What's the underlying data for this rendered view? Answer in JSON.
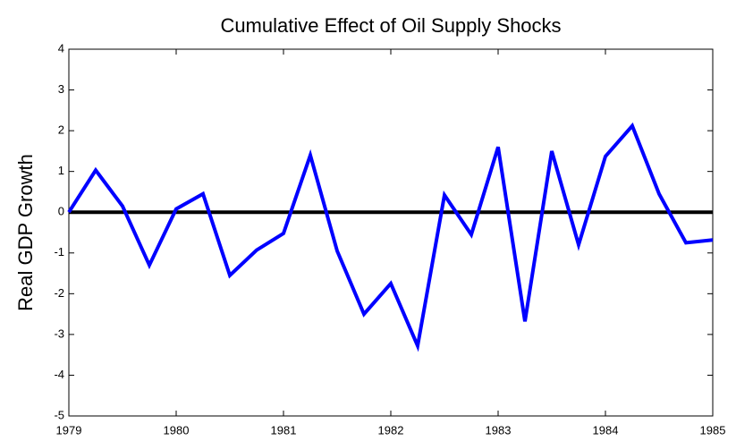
{
  "chart_data": {
    "type": "line",
    "title": "Cumulative Effect of Oil Supply Shocks",
    "ylabel": "Real GDP Growth",
    "x": [
      1979,
      1979.25,
      1979.5,
      1979.75,
      1980,
      1980.25,
      1980.5,
      1980.75,
      1981,
      1981.25,
      1981.5,
      1981.75,
      1982,
      1982.25,
      1982.5,
      1982.75,
      1983,
      1983.25,
      1983.5,
      1983.75,
      1984,
      1984.25,
      1984.5,
      1984.75,
      1985
    ],
    "series": [
      {
        "color": "#0000ff",
        "values": [
          0,
          1.03,
          0.15,
          -1.3,
          0.08,
          0.45,
          -1.55,
          -0.93,
          -0.52,
          1.4,
          -0.95,
          -2.5,
          -1.75,
          -3.28,
          0.42,
          -0.55,
          1.6,
          -2.68,
          1.5,
          -0.8,
          1.37,
          2.12,
          0.45,
          -0.75,
          -0.68
        ]
      }
    ],
    "hline": 0,
    "xlim": [
      1979,
      1985
    ],
    "xticks": [
      1979,
      1980,
      1981,
      1982,
      1983,
      1984,
      1985
    ],
    "ylim": [
      -5,
      4
    ],
    "yticks": [
      -5,
      -4,
      -3,
      -2,
      -1,
      0,
      1,
      2,
      3,
      4
    ]
  }
}
